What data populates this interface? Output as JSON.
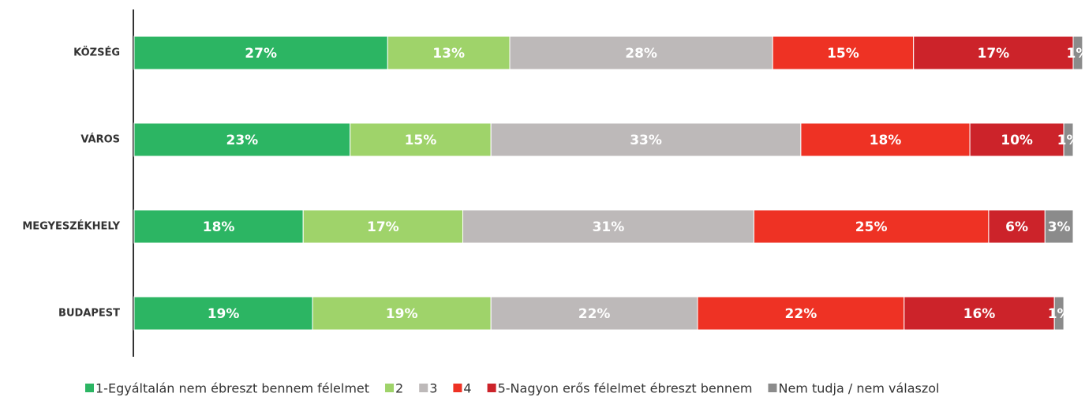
{
  "chart_data": {
    "type": "stacked-bar-horizontal",
    "categories": [
      "KÖZSÉG",
      "VÁROS",
      "MEGYESZÉKHELY",
      "BUDAPEST"
    ],
    "xlim": [
      0,
      100
    ],
    "series": [
      {
        "name": "1-Egyáltalán nem ébreszt bennem félelmet",
        "color": "#2cb563",
        "values": [
          27,
          23,
          18,
          19
        ],
        "value_labels": [
          "27%",
          "23%",
          "18%",
          "19%"
        ]
      },
      {
        "name": "2",
        "color": "#9fd36a",
        "values": [
          13,
          15,
          17,
          19
        ],
        "value_labels": [
          "13%",
          "15%",
          "17%",
          "19%"
        ]
      },
      {
        "name": "3",
        "color": "#bdb9b9",
        "values": [
          28,
          33,
          31,
          22
        ],
        "value_labels": [
          "28%",
          "33%",
          "31%",
          "22%"
        ]
      },
      {
        "name": "4",
        "color": "#ee3224",
        "values": [
          15,
          18,
          25,
          22
        ],
        "value_labels": [
          "15%",
          "18%",
          "25%",
          "22%"
        ]
      },
      {
        "name": "5-Nagyon erős félelmet ébreszt bennem",
        "color": "#cc232a",
        "values": [
          17,
          10,
          6,
          16
        ],
        "value_labels": [
          "17%",
          "10%",
          "6%",
          "16%"
        ]
      },
      {
        "name": "Nem tudja / nem válaszol",
        "color": "#8b8b8b",
        "values": [
          1,
          1,
          3,
          1
        ],
        "value_labels": [
          "1%",
          "1%",
          "3%",
          "1%"
        ]
      }
    ],
    "legend": "bottom"
  }
}
